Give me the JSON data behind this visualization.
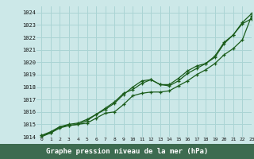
{
  "title": "Graphe pression niveau de la mer (hPa)",
  "bg_color": "#cce8e8",
  "plot_bg_color": "#cce8e8",
  "label_bg_color": "#4a7a5a",
  "grid_color": "#aad4d4",
  "line_color": "#1a5c1a",
  "xlim": [
    -0.5,
    23
  ],
  "ylim": [
    1014,
    1024.5
  ],
  "xticks": [
    0,
    1,
    2,
    3,
    4,
    5,
    6,
    7,
    8,
    9,
    10,
    11,
    12,
    13,
    14,
    15,
    16,
    17,
    18,
    19,
    20,
    21,
    22,
    23
  ],
  "yticks": [
    1014,
    1015,
    1016,
    1017,
    1018,
    1019,
    1020,
    1021,
    1022,
    1023,
    1024
  ],
  "line1_x": [
    0,
    1,
    2,
    3,
    4,
    5,
    6,
    7,
    8,
    9,
    10,
    11,
    12,
    13,
    14,
    15,
    16,
    17,
    18,
    19,
    20,
    21,
    22,
    23
  ],
  "line1_y": [
    1014.1,
    1014.4,
    1014.8,
    1014.9,
    1015.0,
    1015.1,
    1015.5,
    1015.9,
    1016.0,
    1016.6,
    1017.3,
    1017.5,
    1017.6,
    1017.6,
    1017.7,
    1018.1,
    1018.5,
    1019.0,
    1019.4,
    1019.9,
    1020.6,
    1021.1,
    1021.8,
    1023.7
  ],
  "line2_x": [
    0,
    1,
    2,
    3,
    4,
    5,
    6,
    7,
    8,
    9,
    10,
    11,
    12,
    13,
    14,
    15,
    16,
    17,
    18,
    19,
    20,
    21,
    22,
    23
  ],
  "line2_y": [
    1014.1,
    1014.3,
    1014.8,
    1015.0,
    1015.1,
    1015.4,
    1015.8,
    1016.2,
    1016.7,
    1017.4,
    1018.0,
    1018.5,
    1018.6,
    1018.2,
    1018.2,
    1018.7,
    1019.3,
    1019.7,
    1019.9,
    1020.5,
    1021.6,
    1022.2,
    1023.2,
    1023.9
  ],
  "line3_x": [
    0,
    1,
    2,
    3,
    4,
    5,
    6,
    7,
    8,
    9,
    10,
    11,
    12,
    13,
    14,
    15,
    16,
    17,
    18,
    19,
    20,
    21,
    22,
    23
  ],
  "line3_y": [
    1014.0,
    1014.3,
    1014.7,
    1014.9,
    1015.0,
    1015.3,
    1015.8,
    1016.3,
    1016.8,
    1017.5,
    1017.8,
    1018.3,
    1018.6,
    1018.2,
    1018.1,
    1018.5,
    1019.1,
    1019.5,
    1019.9,
    1020.4,
    1021.5,
    1022.2,
    1023.1,
    1023.5
  ]
}
